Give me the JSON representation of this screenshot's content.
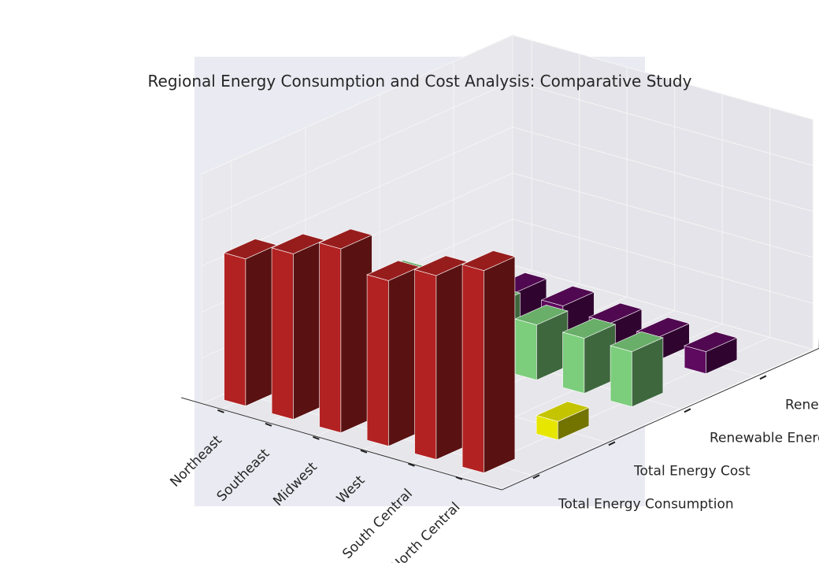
{
  "chart_data": {
    "type": "bar3d",
    "title": "Regional Energy Consumption and Cost Analysis: Comparative Study",
    "regions": [
      "Northeast",
      "Southeast",
      "Midwest",
      "West",
      "South Central",
      "North Central"
    ],
    "metrics": [
      "Total Energy Consumption",
      "Total Energy Cost",
      "Renewable Energy Consumption",
      "Renewable Energy Cost"
    ],
    "zticks": [
      0,
      500,
      1000,
      1500,
      2000,
      2500
    ],
    "zlim": [
      0,
      2500
    ],
    "series": [
      {
        "name": "Total Energy Consumption",
        "color": "#b22222",
        "values": [
          1600,
          1800,
          2000,
          1800,
          2000,
          2200
        ]
      },
      {
        "name": "Total Energy Cost",
        "color": "#e6e600",
        "values": [
          null,
          null,
          null,
          null,
          null,
          200
        ]
      },
      {
        "name": "Renewable Energy Consumption",
        "color": "#7ccd7c",
        "values": [
          650,
          650,
          650,
          600,
          600,
          600
        ]
      },
      {
        "name": "Renewable Energy Cost",
        "color": "#5e0a5e",
        "values": [
          320,
          300,
          300,
          260,
          250,
          240
        ]
      }
    ],
    "background": "#eaeaf2"
  }
}
